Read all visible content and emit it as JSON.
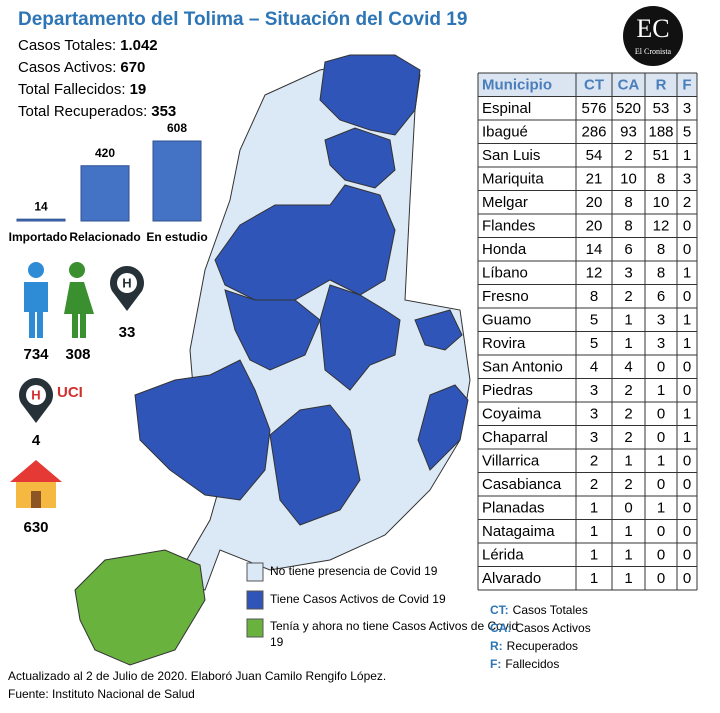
{
  "header": {
    "title": "Departamento del Tolima – Situación del Covid 19",
    "stats": [
      {
        "label": "Casos Totales:",
        "value": "1.042"
      },
      {
        "label": "Casos Activos:",
        "value": "670"
      },
      {
        "label": "Total Fallecidos:",
        "value": "19"
      },
      {
        "label": "Total Recuperados:",
        "value": "353"
      }
    ]
  },
  "logo": {
    "initials": "EC",
    "name": "El Cronista"
  },
  "chart_data": {
    "type": "bar",
    "categories": [
      "Importado",
      "Relacionado",
      "En estudio"
    ],
    "values": [
      14,
      420,
      608
    ],
    "color": "#4472c4"
  },
  "demographics": {
    "men": "734",
    "women": "308",
    "hospital": "33",
    "uci_label": "UCI",
    "uci": "4",
    "home": "630"
  },
  "legend": [
    {
      "label": "No tiene presencia de Covid 19",
      "color": "#dbe8f5"
    },
    {
      "label": "Tiene Casos Activos de Covid 19",
      "color": "#2f55b8"
    },
    {
      "label": "Tenía y ahora no tiene Casos Activos de Covid 19",
      "color": "#6ab23e"
    }
  ],
  "table": {
    "header": [
      "Municipio",
      "CT",
      "CA",
      "R",
      "F"
    ],
    "rows": [
      [
        "Espinal",
        576,
        520,
        53,
        3
      ],
      [
        "Ibagué",
        286,
        93,
        188,
        5
      ],
      [
        "San Luis",
        54,
        2,
        51,
        1
      ],
      [
        "Mariquita",
        21,
        10,
        8,
        3
      ],
      [
        "Melgar",
        20,
        8,
        10,
        2
      ],
      [
        "Flandes",
        20,
        8,
        12,
        0
      ],
      [
        "Honda",
        14,
        6,
        8,
        0
      ],
      [
        "Líbano",
        12,
        3,
        8,
        1
      ],
      [
        "Fresno",
        8,
        2,
        6,
        0
      ],
      [
        "Guamo",
        5,
        1,
        3,
        1
      ],
      [
        "Rovira",
        5,
        1,
        3,
        1
      ],
      [
        "San Antonio",
        4,
        4,
        0,
        0
      ],
      [
        "Piedras",
        3,
        2,
        1,
        0
      ],
      [
        "Coyaima",
        3,
        2,
        0,
        1
      ],
      [
        "Chaparral",
        3,
        2,
        0,
        1
      ],
      [
        "Villarrica",
        2,
        1,
        1,
        0
      ],
      [
        "Casabianca",
        2,
        2,
        0,
        0
      ],
      [
        "Planadas",
        1,
        0,
        1,
        0
      ],
      [
        "Natagaima",
        1,
        1,
        0,
        0
      ],
      [
        "Lérida",
        1,
        1,
        0,
        0
      ],
      [
        "Alvarado",
        1,
        1,
        0,
        0
      ]
    ]
  },
  "abbreviations": [
    {
      "key": "CT:",
      "text": "Casos Totales"
    },
    {
      "key": "CA:",
      "text": "Casos Activos"
    },
    {
      "key": "R:",
      "text": "Recuperados"
    },
    {
      "key": "F:",
      "text": "Fallecidos"
    }
  ],
  "footer": [
    "Actualizado al 2 de Julio de 2020. Elaboró Juan Camilo Rengifo López.",
    "Fuente: Instituto Nacional de Salud"
  ]
}
